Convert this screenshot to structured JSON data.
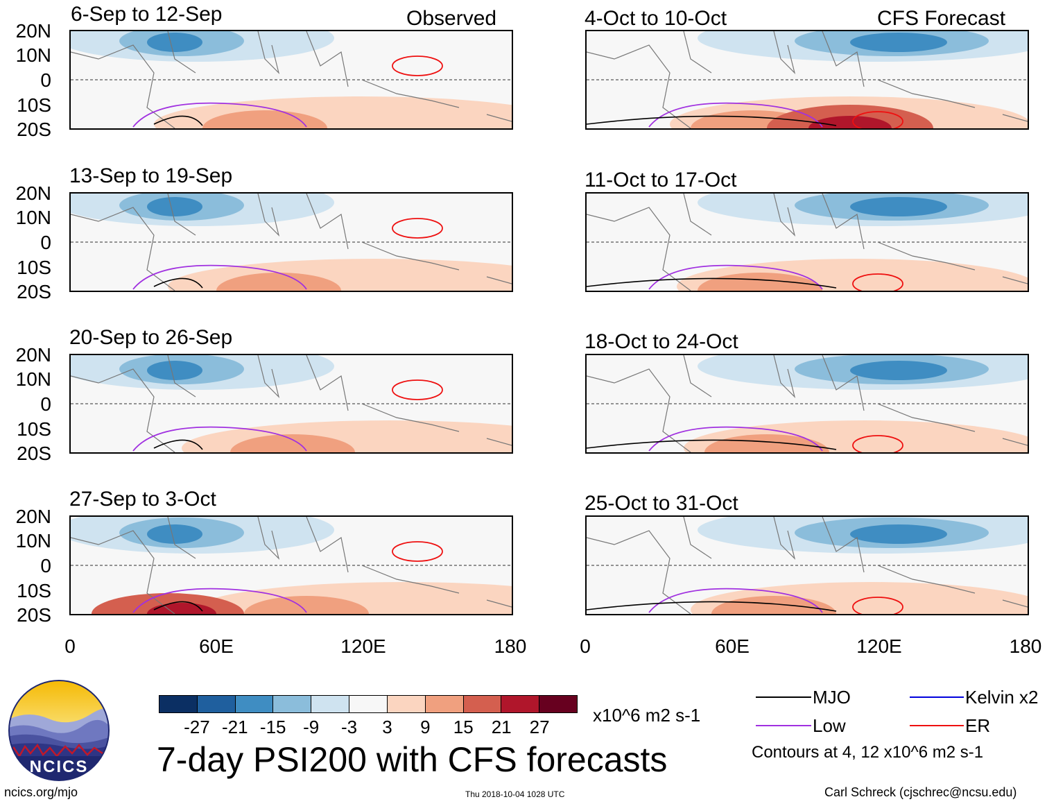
{
  "header": {
    "left_tag": "Observed",
    "right_tag": "CFS Forecast"
  },
  "panels_left": [
    {
      "title": "6-Sep to 12-Sep"
    },
    {
      "title": "13-Sep to 19-Sep"
    },
    {
      "title": "20-Sep to 26-Sep"
    },
    {
      "title": "27-Sep to 3-Oct"
    }
  ],
  "panels_right": [
    {
      "title": "4-Oct to 10-Oct"
    },
    {
      "title": "11-Oct to 17-Oct"
    },
    {
      "title": "18-Oct to 24-Oct"
    },
    {
      "title": "25-Oct to 31-Oct"
    }
  ],
  "lat_labels": [
    "20N",
    "10N",
    "0",
    "10S",
    "20S"
  ],
  "lon_labels": [
    "0",
    "60E",
    "120E",
    "180"
  ],
  "colorbar": {
    "colors": [
      "#0b2f63",
      "#1f5f9e",
      "#3f8dc2",
      "#8bbddb",
      "#cfe3f0",
      "#f7f7f7",
      "#fbd5c0",
      "#f0a07f",
      "#d45f4f",
      "#b0162b",
      "#67001f"
    ],
    "labels": [
      "-27",
      "-21",
      "-15",
      "-9",
      "-3",
      "3",
      "9",
      "15",
      "21",
      "27"
    ],
    "units": "x10^6 m2 s-1"
  },
  "main_title": "7-day PSI200 with CFS forecasts",
  "logo_text": "NCICS",
  "legend": {
    "items": [
      {
        "label": "MJO",
        "color": "#000000"
      },
      {
        "label": "Kelvin x2",
        "color": "#0000dd"
      },
      {
        "label": "Low",
        "color": "#a030e0"
      },
      {
        "label": "ER",
        "color": "#ee1010"
      }
    ],
    "note": "Contours at 4, 12 x10^6 m2 s-1"
  },
  "footer": {
    "site": "ncics.org/mjo",
    "timestamp": "Thu 2018-10-04 1028 UTC",
    "credit": "Carl Schreck (cjschrec@ncsu.edu)"
  }
}
